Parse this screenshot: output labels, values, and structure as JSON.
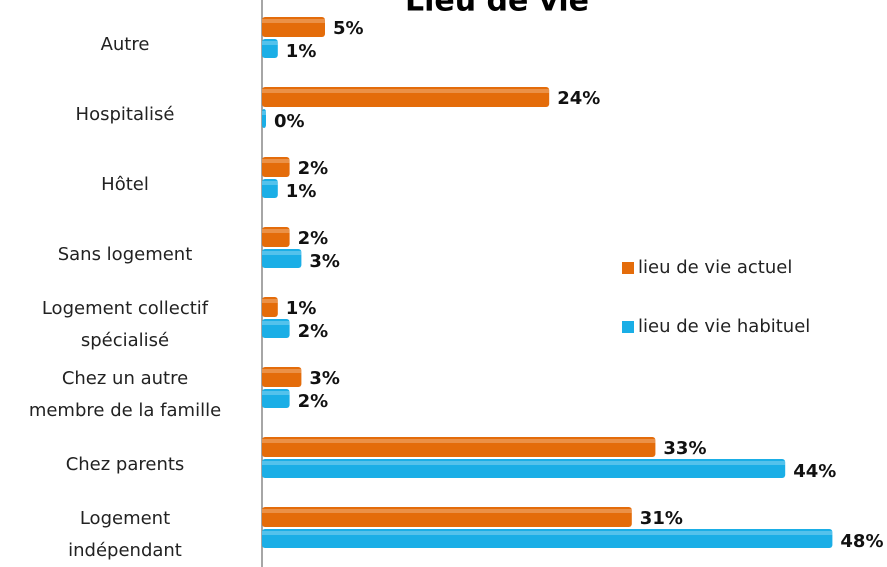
{
  "chart_data": {
    "type": "bar",
    "orientation": "horizontal",
    "title": "Lieu de vie",
    "categories": [
      "Autre",
      "Hospitalisé",
      "Hôtel",
      "Sans logement",
      "Logement collectif\nspécialisé",
      "Chez un autre\nmembre de la famille",
      "Chez parents",
      "Logement\nindépendant"
    ],
    "series": [
      {
        "name": "lieu de vie actuel",
        "color": "#e46c0a",
        "values": [
          5,
          24,
          2,
          2,
          1,
          3,
          33,
          31
        ],
        "value_labels": [
          "5%",
          "24%",
          "2%",
          "2%",
          "1%",
          "3%",
          "33%",
          "31%"
        ]
      },
      {
        "name": "lieu de vie habituel",
        "color": "#1aaee6",
        "values": [
          1,
          0,
          1,
          3,
          2,
          2,
          44,
          48
        ],
        "value_labels": [
          "1%",
          "0%",
          "1%",
          "3%",
          "2%",
          "2%",
          "44%",
          "48%"
        ]
      }
    ],
    "legend": "right"
  }
}
